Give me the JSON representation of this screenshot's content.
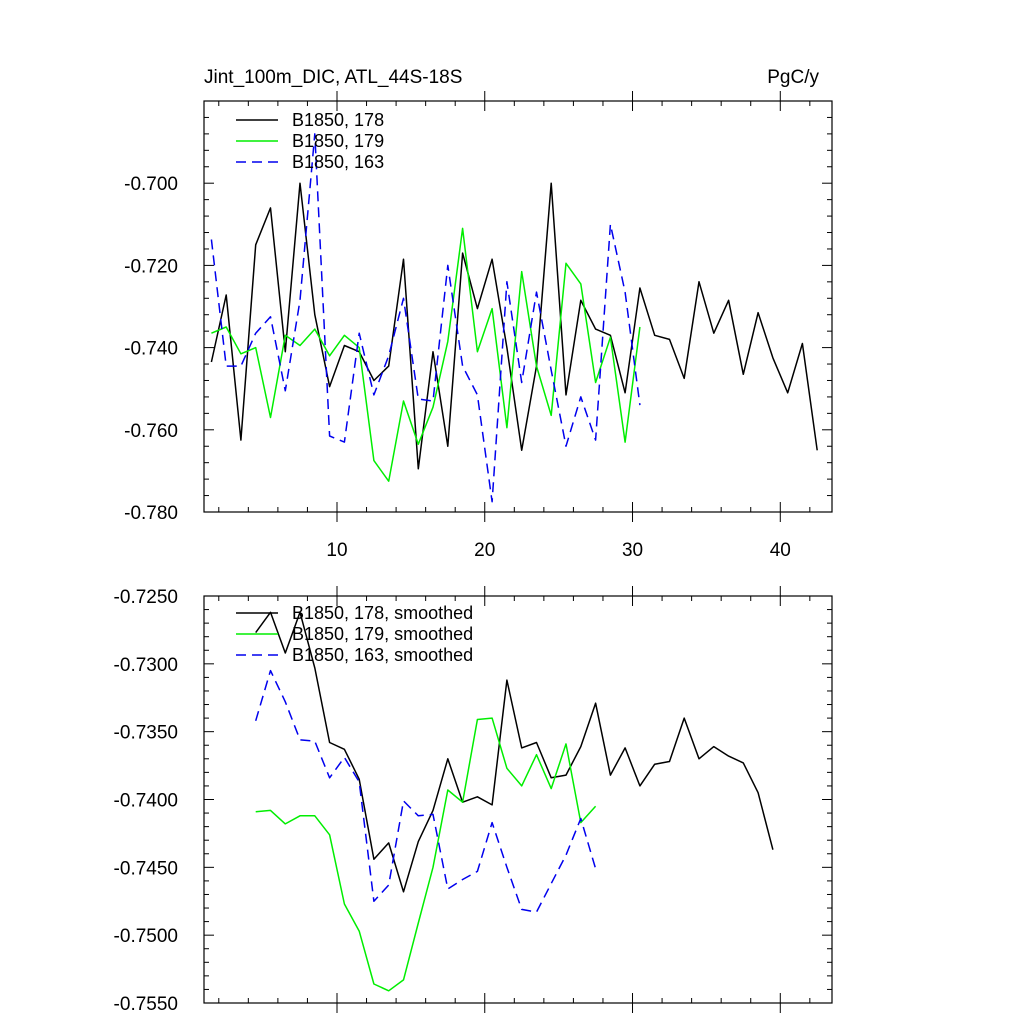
{
  "chart_data": [
    {
      "type": "line",
      "title": "Jint_100m_DIC, ATL_44S-18S",
      "units": "PgC/y",
      "xlim": [
        1,
        43.5
      ],
      "ylim": [
        -0.78,
        -0.68
      ],
      "xticks": [
        10,
        20,
        30,
        40
      ],
      "xtick_labels": [
        "10",
        "20",
        "30",
        "40"
      ],
      "yticks": [
        -0.78,
        -0.76,
        -0.74,
        -0.72,
        -0.7
      ],
      "ytick_labels": [
        "-0.780",
        "-0.760",
        "-0.740",
        "-0.720",
        "-0.700"
      ],
      "legend_position": "top-left",
      "series": [
        {
          "name": "B1850, 178",
          "color": "#000000",
          "dash": "solid",
          "x": [
            1.5,
            2.5,
            3.5,
            4.5,
            5.5,
            6.5,
            7.5,
            8.5,
            9.5,
            10.5,
            11.5,
            12.5,
            13.5,
            14.5,
            15.5,
            16.5,
            17.5,
            18.5,
            19.5,
            20.5,
            21.5,
            22.5,
            23.5,
            24.5,
            25.5,
            26.5,
            27.5,
            28.5,
            29.5,
            30.5,
            31.5,
            32.5,
            33.5,
            34.5,
            35.5,
            36.5,
            37.5,
            38.5,
            39.5,
            40.5,
            41.5,
            42.5
          ],
          "values": [
            -0.7435,
            -0.7272,
            -0.7625,
            -0.715,
            -0.706,
            -0.741,
            -0.7,
            -0.732,
            -0.7495,
            -0.7395,
            -0.741,
            -0.748,
            -0.7445,
            -0.7185,
            -0.7695,
            -0.741,
            -0.764,
            -0.717,
            -0.7305,
            -0.7185,
            -0.74,
            -0.765,
            -0.7445,
            -0.7,
            -0.7515,
            -0.7285,
            -0.7355,
            -0.737,
            -0.751,
            -0.7255,
            -0.737,
            -0.738,
            -0.7475,
            -0.724,
            -0.7365,
            -0.7285,
            -0.7465,
            -0.7315,
            -0.7425,
            -0.751,
            -0.739,
            -0.765
          ]
        },
        {
          "name": "B1850, 179",
          "color": "#00ee00",
          "dash": "solid",
          "x": [
            1.5,
            2.5,
            3.5,
            4.5,
            5.5,
            6.5,
            7.5,
            8.5,
            9.5,
            10.5,
            11.5,
            12.5,
            13.5,
            14.5,
            15.5,
            16.5,
            17.5,
            18.5,
            19.5,
            20.5,
            21.5,
            22.5,
            23.5,
            24.5,
            25.5,
            26.5,
            27.5,
            28.5,
            29.5,
            30.5
          ],
          "values": [
            -0.7365,
            -0.735,
            -0.7415,
            -0.74,
            -0.757,
            -0.737,
            -0.7395,
            -0.7355,
            -0.742,
            -0.737,
            -0.74,
            -0.7675,
            -0.7725,
            -0.753,
            -0.7635,
            -0.7545,
            -0.7385,
            -0.711,
            -0.741,
            -0.7305,
            -0.7595,
            -0.7215,
            -0.7445,
            -0.7565,
            -0.7195,
            -0.7245,
            -0.7485,
            -0.7375,
            -0.763,
            -0.735
          ]
        },
        {
          "name": "B1850, 163",
          "color": "#0000ee",
          "dash": "dashed",
          "x": [
            1.5,
            2.5,
            3.5,
            4.5,
            5.5,
            6.5,
            7.5,
            8.5,
            9.5,
            10.5,
            11.5,
            12.5,
            13.5,
            14.5,
            15.5,
            16.5,
            17.5,
            18.5,
            19.5,
            20.5,
            21.5,
            22.5,
            23.5,
            24.5,
            25.5,
            26.5,
            27.5,
            28.5,
            29.5,
            30.5
          ],
          "values": [
            -0.7137,
            -0.7445,
            -0.7445,
            -0.7365,
            -0.7325,
            -0.7505,
            -0.7285,
            -0.688,
            -0.7615,
            -0.763,
            -0.7365,
            -0.7515,
            -0.742,
            -0.728,
            -0.7525,
            -0.753,
            -0.72,
            -0.7445,
            -0.7515,
            -0.7775,
            -0.724,
            -0.7485,
            -0.7265,
            -0.7455,
            -0.764,
            -0.752,
            -0.7625,
            -0.71,
            -0.7265,
            -0.754
          ]
        }
      ]
    },
    {
      "type": "line",
      "title": "",
      "xlim": [
        1,
        43.5
      ],
      "ylim": [
        -0.755,
        -0.725
      ],
      "xticks": [
        10,
        20,
        30,
        40
      ],
      "xtick_labels": [],
      "yticks": [
        -0.755,
        -0.75,
        -0.745,
        -0.74,
        -0.735,
        -0.73,
        -0.725
      ],
      "ytick_labels": [
        "-0.7550",
        "-0.7500",
        "-0.7450",
        "-0.7400",
        "-0.7350",
        "-0.7300",
        "-0.7250"
      ],
      "legend_position": "top-left",
      "series": [
        {
          "name": "B1850, 178, smoothed",
          "color": "#000000",
          "dash": "solid",
          "x": [
            4.5,
            5.5,
            6.5,
            7.5,
            8.5,
            9.5,
            10.5,
            11.5,
            12.5,
            13.5,
            14.5,
            15.5,
            16.5,
            17.5,
            18.5,
            19.5,
            20.5,
            21.5,
            22.5,
            23.5,
            24.5,
            25.5,
            26.5,
            27.5,
            28.5,
            29.5,
            30.5,
            31.5,
            32.5,
            33.5,
            34.5,
            35.5,
            36.5,
            37.5,
            38.5,
            39.5
          ],
          "values": [
            -0.7277,
            -0.7262,
            -0.7292,
            -0.7262,
            -0.7303,
            -0.7358,
            -0.7363,
            -0.7385,
            -0.7444,
            -0.7432,
            -0.7468,
            -0.7431,
            -0.7408,
            -0.737,
            -0.7402,
            -0.7398,
            -0.7404,
            -0.7312,
            -0.7362,
            -0.7358,
            -0.7384,
            -0.7382,
            -0.7361,
            -0.7329,
            -0.7382,
            -0.7362,
            -0.739,
            -0.7374,
            -0.7372,
            -0.734,
            -0.737,
            -0.7361,
            -0.7368,
            -0.7373,
            -0.7395,
            -0.7437
          ]
        },
        {
          "name": "B1850, 179, smoothed",
          "color": "#00ee00",
          "dash": "solid",
          "x": [
            4.5,
            5.5,
            6.5,
            7.5,
            8.5,
            9.5,
            10.5,
            11.5,
            12.5,
            13.5,
            14.5,
            15.5,
            16.5,
            17.5,
            18.5,
            19.5,
            20.5,
            21.5,
            22.5,
            23.5,
            24.5,
            25.5,
            26.5,
            27.5
          ],
          "values": [
            -0.7409,
            -0.7408,
            -0.7418,
            -0.7412,
            -0.7412,
            -0.7426,
            -0.7477,
            -0.7497,
            -0.7536,
            -0.7541,
            -0.7533,
            -0.7491,
            -0.745,
            -0.7393,
            -0.7402,
            -0.7341,
            -0.734,
            -0.7377,
            -0.739,
            -0.7367,
            -0.7392,
            -0.7359,
            -0.7417,
            -0.7405
          ]
        },
        {
          "name": "B1850, 163, smoothed",
          "color": "#0000ee",
          "dash": "dashed",
          "x": [
            4.5,
            5.5,
            6.5,
            7.5,
            8.5,
            9.5,
            10.5,
            11.5,
            12.5,
            13.5,
            14.5,
            15.5,
            16.5,
            17.5,
            18.5,
            19.5,
            20.5,
            21.5,
            22.5,
            23.5,
            24.5,
            25.5,
            26.5,
            27.5
          ],
          "values": [
            -0.7342,
            -0.7305,
            -0.7328,
            -0.7356,
            -0.7357,
            -0.7384,
            -0.7369,
            -0.7387,
            -0.7475,
            -0.7463,
            -0.7401,
            -0.7412,
            -0.7411,
            -0.7466,
            -0.7459,
            -0.7453,
            -0.7417,
            -0.745,
            -0.7481,
            -0.7483,
            -0.7462,
            -0.7441,
            -0.7414,
            -0.7451
          ]
        }
      ]
    }
  ]
}
